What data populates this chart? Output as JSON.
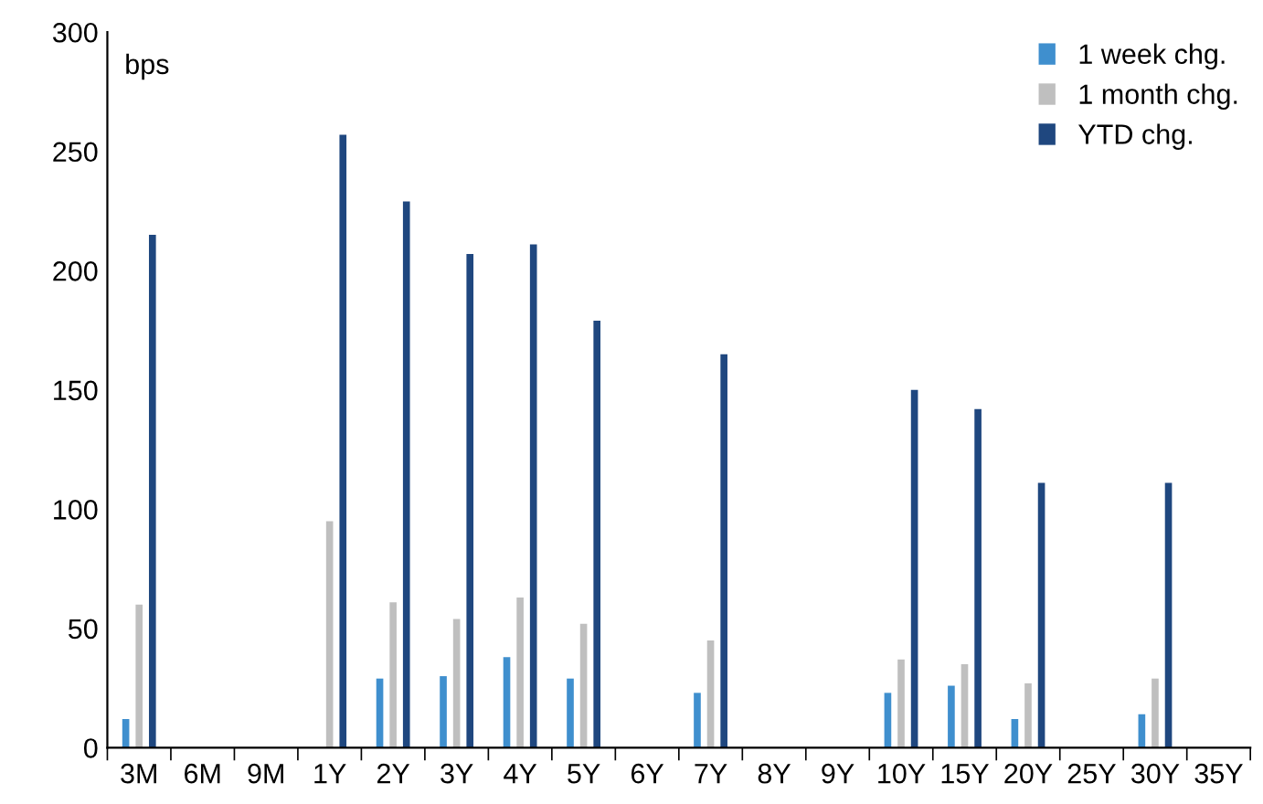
{
  "chart_data": {
    "type": "bar",
    "categories": [
      "3M",
      "6M",
      "9M",
      "1Y",
      "2Y",
      "3Y",
      "4Y",
      "5Y",
      "6Y",
      "7Y",
      "8Y",
      "9Y",
      "10Y",
      "15Y",
      "20Y",
      "25Y",
      "30Y",
      "35Y"
    ],
    "series": [
      {
        "name": "1 week chg.",
        "color": "#3f8fce",
        "values": [
          12,
          null,
          null,
          null,
          29,
          30,
          38,
          29,
          null,
          23,
          null,
          null,
          23,
          26,
          12,
          null,
          14,
          null
        ]
      },
      {
        "name": "1 month chg.",
        "color": "#bfbfbf",
        "values": [
          60,
          null,
          null,
          95,
          61,
          54,
          63,
          52,
          null,
          45,
          null,
          null,
          37,
          35,
          27,
          null,
          29,
          null
        ]
      },
      {
        "name": "YTD chg.",
        "color": "#1f477f",
        "values": [
          215,
          null,
          null,
          257,
          229,
          207,
          211,
          179,
          null,
          165,
          null,
          null,
          150,
          142,
          111,
          null,
          111,
          null
        ]
      }
    ],
    "ylim": [
      0,
      300
    ],
    "yticks": [
      0,
      50,
      100,
      150,
      200,
      250,
      300
    ],
    "annotations": [
      "bps"
    ],
    "legend": "top right",
    "grid": false
  }
}
